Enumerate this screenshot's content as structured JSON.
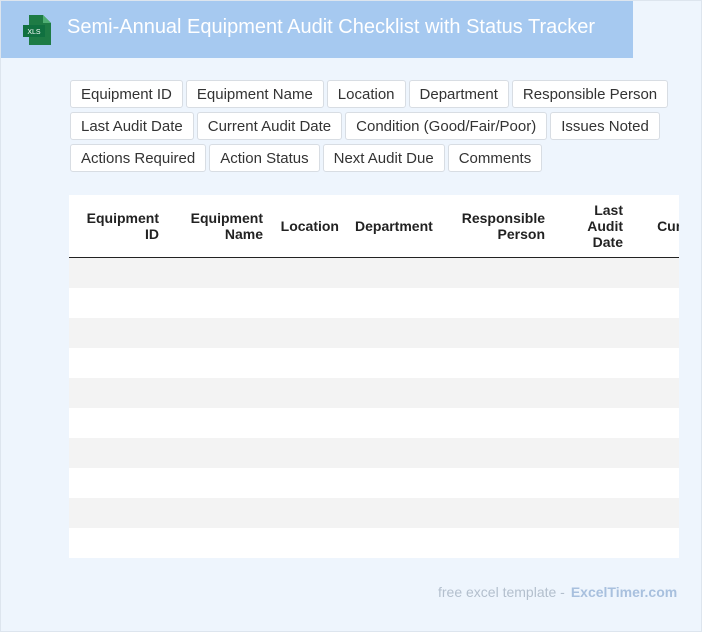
{
  "header": {
    "icon": "XLS",
    "title": "Semi-Annual Equipment Audit Checklist with Status Tracker"
  },
  "fields": [
    "Equipment ID",
    "Equipment Name",
    "Location",
    "Department",
    "Responsible Person",
    "Last Audit Date",
    "Current Audit Date",
    "Condition (Good/Fair/Poor)",
    "Issues Noted",
    "Actions Required",
    "Action Status",
    "Next Audit Due",
    "Comments"
  ],
  "table": {
    "columns": [
      "Equipment ID",
      "Equipment Name",
      "Location",
      "Department",
      "Responsible Person",
      "Last Audit Date",
      "Current Audit Date"
    ]
  },
  "footer": {
    "text": "free excel template -",
    "link": "ExcelTimer.com"
  }
}
